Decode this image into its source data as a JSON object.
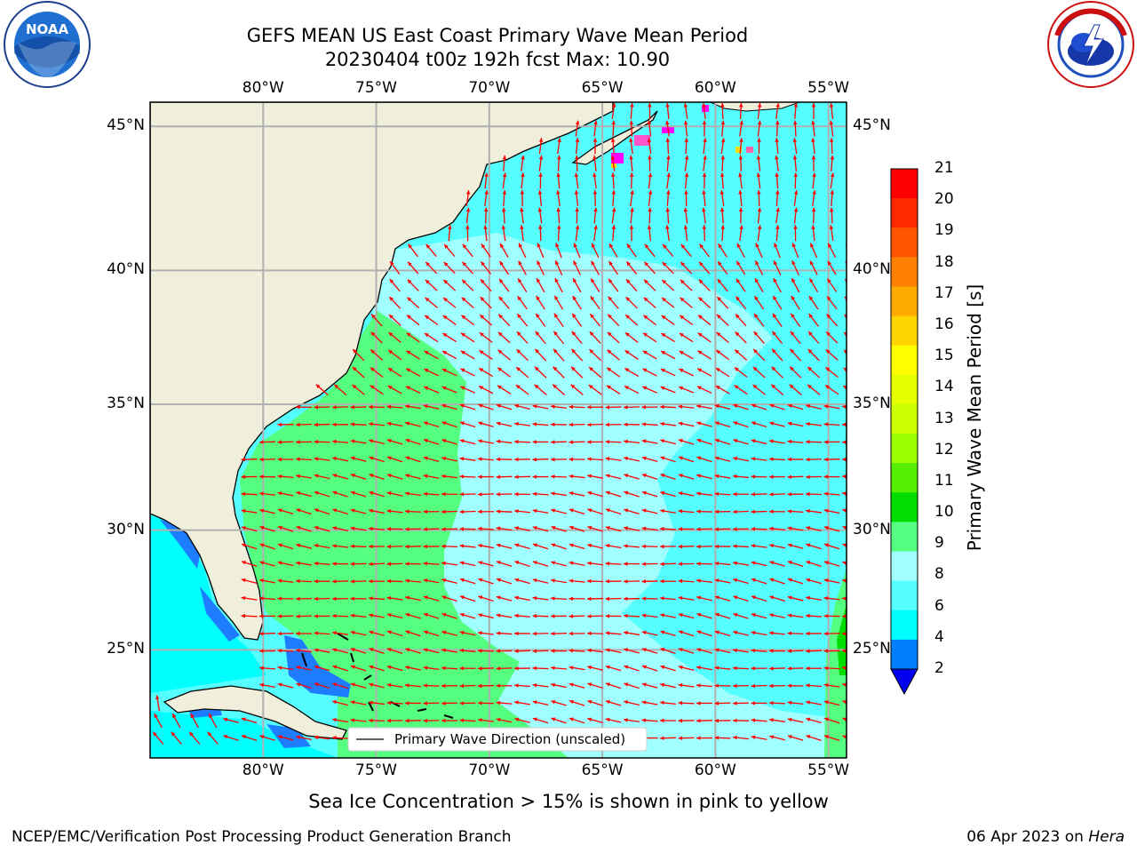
{
  "header": {
    "title_line1": "GEFS MEAN US East Coast Primary Wave Mean Period",
    "title_line2": "20230404 t00z 192h fcst   Max: 10.90"
  },
  "logos": {
    "left": {
      "icon": "noaa-logo-icon",
      "text": "NOAA",
      "ring_text": "NATIONAL OCEANIC AND ATMOSPHERIC ADMINISTRATION · U.S. DEPARTMENT OF COMMERCE"
    },
    "right": {
      "icon": "nws-logo-icon",
      "ring_text": "NATIONAL WEATHER SERVICE"
    }
  },
  "map": {
    "lon_labels": [
      "80°W",
      "75°W",
      "70°W",
      "65°W",
      "60°W",
      "55°W"
    ],
    "lat_labels": [
      "45°N",
      "40°N",
      "35°N",
      "30°N",
      "25°N"
    ],
    "lon_values": [
      -80,
      -75,
      -70,
      -65,
      -60,
      -55
    ],
    "lat_values": [
      45,
      40,
      35,
      30,
      25
    ],
    "extent": {
      "lon_min": -85,
      "lon_max": -54.2,
      "lat_min": 20.3,
      "lat_max": 45.8
    },
    "legend_label": "Primary Wave Direction (unscaled)",
    "arrow_color": "#ff0000",
    "land_color": "#efefdc"
  },
  "colorbar": {
    "label": "Primary Wave Mean Period [s]",
    "ticks": [
      "21",
      "20",
      "19",
      "18",
      "17",
      "16",
      "15",
      "14",
      "13",
      "12",
      "11",
      "10",
      "9",
      "8",
      "6",
      "4",
      "2"
    ],
    "colors": [
      "#ff0000",
      "#ff2a00",
      "#ff5500",
      "#ff8000",
      "#ffaa00",
      "#ffd500",
      "#ffff00",
      "#e6ff00",
      "#ccff00",
      "#99ff00",
      "#55ee00",
      "#00dd00",
      "#55ff80",
      "#a0ffff",
      "#55ffff",
      "#00ffff",
      "#0080ff"
    ],
    "extend_color": "#0000ee"
  },
  "footer": {
    "sea_ice_note": "Sea Ice Concentration > 15% is shown in pink to yellow",
    "left": "NCEP/EMC/Verification Post Processing Product Generation Branch",
    "date": "06 Apr 2023 on ",
    "host": "Hera"
  }
}
